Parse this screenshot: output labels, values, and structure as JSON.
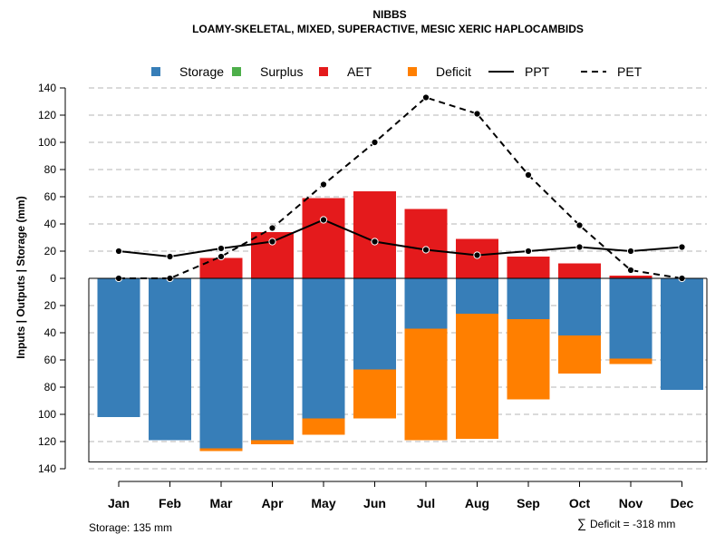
{
  "chart_data": {
    "type": "bar",
    "title": "NIBBS",
    "subtitle": "LOAMY-SKELETAL, MIXED, SUPERACTIVE, MESIC XERIC HAPLOCAMBIDS",
    "ylabel": "Inputs | Outputs | Storage    (mm)",
    "categories": [
      "Jan",
      "Feb",
      "Mar",
      "Apr",
      "May",
      "Jun",
      "Jul",
      "Aug",
      "Sep",
      "Oct",
      "Nov",
      "Dec"
    ],
    "ylim": [
      -140,
      140
    ],
    "yticks": [
      140,
      120,
      100,
      80,
      60,
      40,
      20,
      0,
      -20,
      -40,
      -60,
      -80,
      -100,
      -120,
      -140
    ],
    "ytick_labels": [
      "140",
      "120",
      "100",
      "80",
      "60",
      "40",
      "20",
      "0",
      "20",
      "40",
      "60",
      "80",
      "100",
      "120",
      "140"
    ],
    "series": [
      {
        "name": "Storage",
        "color": "#377EB8",
        "values": [
          -102,
          -119,
          -125,
          -119,
          -103,
          -67,
          -37,
          -26,
          -30,
          -42,
          -59,
          -82
        ]
      },
      {
        "name": "Surplus",
        "color": "#4DAF4A",
        "values": [
          0,
          0,
          0,
          0,
          0,
          0,
          0,
          0,
          0,
          0,
          0,
          0
        ]
      },
      {
        "name": "AET",
        "color": "#E41A1C",
        "values": [
          0,
          0,
          15,
          34,
          59,
          64,
          51,
          29,
          16,
          11,
          2,
          0
        ]
      },
      {
        "name": "Deficit",
        "color": "#FF7F00",
        "values": [
          0,
          0,
          -2,
          -3,
          -12,
          -36,
          -82,
          -92,
          -59,
          -28,
          -4,
          0
        ]
      },
      {
        "name": "PPT",
        "color": "#000000",
        "style": "solid",
        "values": [
          20,
          16,
          22,
          27,
          43,
          27,
          21,
          17,
          20,
          23,
          20,
          23
        ]
      },
      {
        "name": "PET",
        "color": "#000000",
        "style": "dashed",
        "values": [
          0,
          0,
          16,
          37,
          69,
          100,
          133,
          121,
          76,
          39,
          6,
          0
        ]
      }
    ],
    "storage_capacity": 135,
    "legend_position": "top",
    "grid": true
  },
  "footer": {
    "storage_label": "Storage: 135 mm",
    "deficit_symbol": "∑",
    "deficit_label": "Deficit = -318 mm"
  }
}
